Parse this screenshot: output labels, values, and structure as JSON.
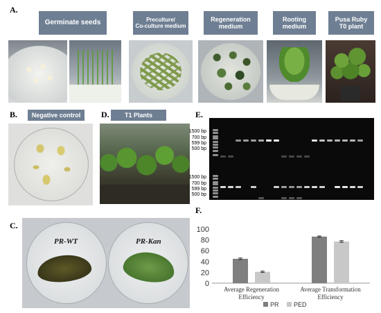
{
  "panel_labels": {
    "a": "A.",
    "b": "B.",
    "c": "C.",
    "d": "D.",
    "e": "E.",
    "f": "F."
  },
  "headers": {
    "germinate": "Germinate seeds",
    "preculture_line1": "Preculture/",
    "preculture_line2": "Co-culture medium",
    "regeneration_line1": "Regeneration",
    "regeneration_line2": "medium",
    "rooting_line1": "Rooting",
    "rooting_line2": "medium",
    "pusa_line1": "Pusa Ruby",
    "pusa_line2": "T0 plant",
    "negative_control": "Negative control",
    "t1_plants": "T1 Plants"
  },
  "plate_labels": {
    "wt": "PR-WT",
    "kan": "PR-Kan"
  },
  "gel": {
    "ladder_top": [
      "1500 bp",
      "700 bp",
      "599 bp",
      "500 bp"
    ],
    "ladder_bottom": [
      "1500 bp",
      "700 bp",
      "599 bp",
      "500 bp"
    ]
  },
  "colors": {
    "header_bg": "#6f7f93",
    "pr_bar": "#7f7f7f",
    "ped_bar": "#c8c8c8"
  },
  "chart_data": {
    "type": "bar",
    "categories": [
      "Average Regeneration Efficiency",
      "Average Transformation Efficiency"
    ],
    "category_lines": [
      [
        "Average Regeneration",
        "Efficiency"
      ],
      [
        "Average Transformation",
        "Efficiency"
      ]
    ],
    "series": [
      {
        "name": "PR",
        "values": [
          45,
          86
        ],
        "errors": [
          1.5,
          1.2
        ]
      },
      {
        "name": "PED",
        "values": [
          21,
          77
        ],
        "errors": [
          1.2,
          1.5
        ]
      }
    ],
    "ylim": [
      0,
      100
    ],
    "yticks": [
      0,
      20,
      40,
      60,
      80,
      100
    ],
    "grid": false,
    "legend_position": "bottom"
  }
}
